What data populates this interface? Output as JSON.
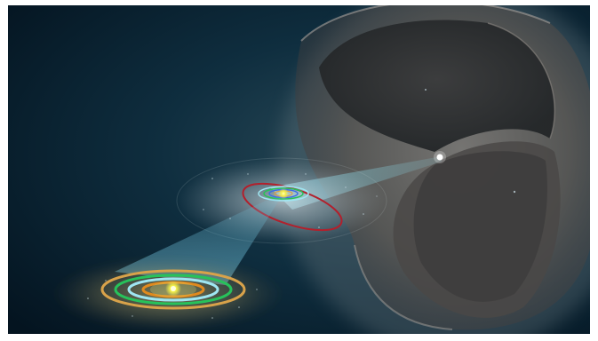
{
  "image": {
    "description_visible_text": [],
    "colors": {
      "space_dark": "#071a26",
      "space_mid": "#0e2b3a",
      "cloud_shell": "#6b6764",
      "cloud_shell_dark": "#2f3236",
      "beam": "#7fd0e6",
      "sun": "#f4f04a",
      "orbit_orange": "#d8a24a",
      "orbit_green": "#27c25a",
      "orbit_cyan": "#9fe6f2",
      "orbit_red": "#b2202c"
    },
    "icons": [
      "sun-icon",
      "comet-dot-icon"
    ]
  }
}
